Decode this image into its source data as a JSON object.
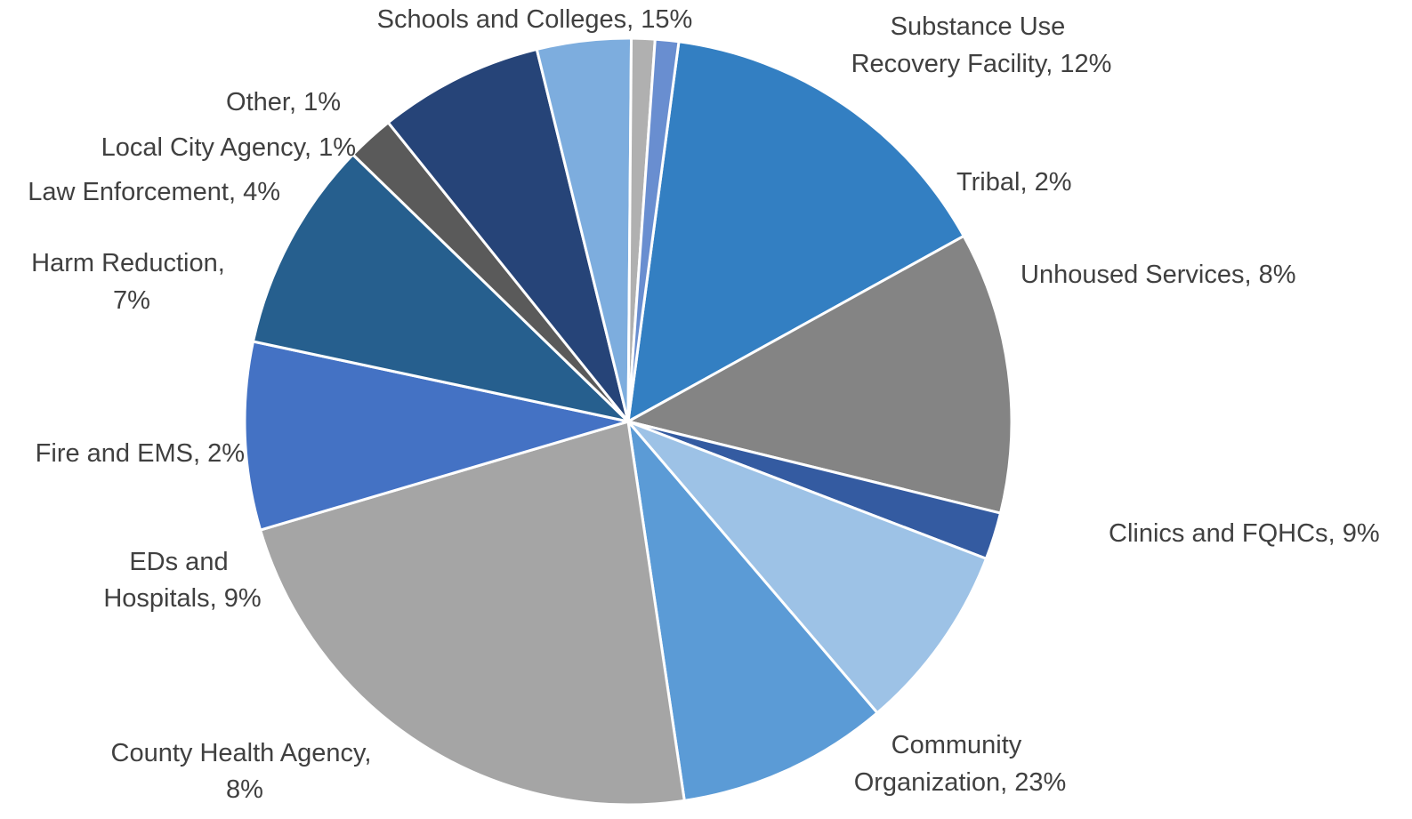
{
  "chart_data": {
    "type": "pie",
    "title": "",
    "slices": [
      {
        "label": "Schools and Colleges",
        "value": 15,
        "display": "15%",
        "color": "#337fc2"
      },
      {
        "label": "Substance Use Recovery Facility",
        "value": 12,
        "display": "12%",
        "color": "#848484"
      },
      {
        "label": "Tribal",
        "value": 2,
        "display": "2%",
        "color": "#345ba1"
      },
      {
        "label": "Unhoused Services",
        "value": 8,
        "display": "8%",
        "color": "#9dc2e6"
      },
      {
        "label": "Clinics and FQHCs",
        "value": 9,
        "display": "9%",
        "color": "#5b9bd6"
      },
      {
        "label": "Community Organization",
        "value": 23,
        "display": "23%",
        "color": "#a5a5a5"
      },
      {
        "label": "County Health Agency",
        "value": 8,
        "display": "8%",
        "color": "#4472c4"
      },
      {
        "label": "EDs and Hospitals",
        "value": 9,
        "display": "9%",
        "color": "#265f8e"
      },
      {
        "label": "Fire and EMS",
        "value": 2,
        "display": "2%",
        "color": "#5a5a5a"
      },
      {
        "label": "Harm Reduction",
        "value": 7,
        "display": "7%",
        "color": "#264478"
      },
      {
        "label": "Law Enforcement",
        "value": 4,
        "display": "4%",
        "color": "#7dadde"
      },
      {
        "label": "Local City Agency",
        "value": 1,
        "display": "1%",
        "color": "#b0b0b0"
      },
      {
        "label": "Other",
        "value": 1,
        "display": "1%",
        "color": "#698ed0"
      }
    ],
    "legend": "none",
    "data_labels": "category name and percentage"
  }
}
